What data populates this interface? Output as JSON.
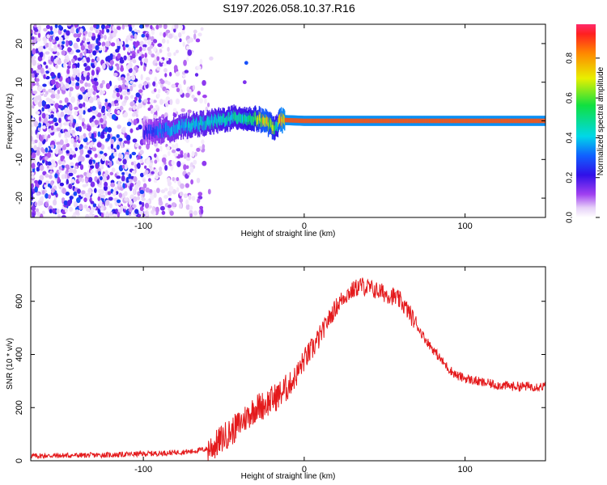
{
  "chart_data": [
    {
      "type": "heatmap",
      "title": "S197.2026.058.10.37.R16",
      "xlabel": "Height of straight line (km)",
      "ylabel": "Frequency (Hz)",
      "xlim": [
        -170,
        150
      ],
      "ylim": [
        -25,
        25
      ],
      "x_ticks": [
        -100,
        0,
        100
      ],
      "x_tick_labels": [
        "-100",
        "0",
        "100"
      ],
      "y_ticks": [
        -20,
        -10,
        0,
        10,
        20
      ],
      "y_tick_labels": [
        "-20",
        "-10",
        "0",
        "10",
        "20"
      ],
      "grid": false,
      "colorbar": {
        "label": "Normalized spectral amplitude",
        "range": [
          0,
          0.97
        ],
        "ticks": [
          0.0,
          0.2,
          0.4,
          0.6,
          0.8
        ],
        "tick_labels": [
          "0.0",
          "0.2",
          "0.4",
          "0.6",
          "0.8"
        ],
        "colormap": "rainbow (white, violet, blue, cyan, green, yellow, orange, red)"
      },
      "ridge_centerline": {
        "x": [
          -100,
          -90,
          -80,
          -70,
          -60,
          -50,
          -40,
          -35,
          -30,
          -25,
          -20,
          -17,
          -15,
          -12,
          0,
          50,
          100,
          150
        ],
        "frequency": [
          -3,
          -2.5,
          -2,
          -1,
          -0.5,
          0.3,
          1,
          0.5,
          0.5,
          0.2,
          -1.5,
          -1.8,
          0,
          0.2,
          0,
          0,
          0,
          0
        ],
        "amplitude": [
          0.25,
          0.35,
          0.4,
          0.45,
          0.45,
          0.5,
          0.5,
          0.55,
          0.6,
          0.8,
          0.7,
          0.5,
          0.85,
          0.9,
          0.9,
          0.9,
          0.9,
          0.9
        ]
      },
      "isolated_spots": [
        {
          "x": -36,
          "frequency": 15,
          "amplitude": 0.3
        },
        {
          "x": -37,
          "frequency": 10,
          "amplitude": 0.15
        }
      ],
      "noise_region": {
        "x_range": [
          -170,
          -65
        ],
        "frequency_range": [
          -25,
          25
        ],
        "amplitude_range": [
          0.03,
          0.3
        ]
      }
    },
    {
      "type": "line",
      "title": "",
      "xlabel": "Height of straight line (km)",
      "ylabel": "SNR (10 * v/v)",
      "xlim": [
        -170,
        150
      ],
      "ylim": [
        0,
        730
      ],
      "x_ticks": [
        -100,
        0,
        100
      ],
      "x_tick_labels": [
        "-100",
        "0",
        "100"
      ],
      "y_ticks": [
        0,
        200,
        400,
        600
      ],
      "y_tick_labels": [
        "0",
        "200",
        "400",
        "600"
      ],
      "grid": false,
      "series": [
        {
          "color": "#e41a1c",
          "x": [
            -170,
            -120,
            -90,
            -70,
            -60,
            -55,
            -50,
            -45,
            -40,
            -35,
            -30,
            -25,
            -20,
            -15,
            -10,
            -5,
            0,
            5,
            10,
            15,
            20,
            25,
            30,
            35,
            40,
            45,
            50,
            55,
            60,
            65,
            70,
            75,
            80,
            85,
            90,
            95,
            100,
            110,
            120,
            130,
            140,
            150
          ],
          "y": [
            18,
            22,
            28,
            35,
            45,
            60,
            90,
            110,
            140,
            170,
            200,
            210,
            230,
            250,
            280,
            320,
            380,
            420,
            470,
            530,
            580,
            620,
            640,
            660,
            650,
            640,
            630,
            620,
            600,
            560,
            510,
            460,
            420,
            380,
            345,
            320,
            310,
            295,
            285,
            280,
            280,
            280
          ]
        }
      ]
    }
  ]
}
